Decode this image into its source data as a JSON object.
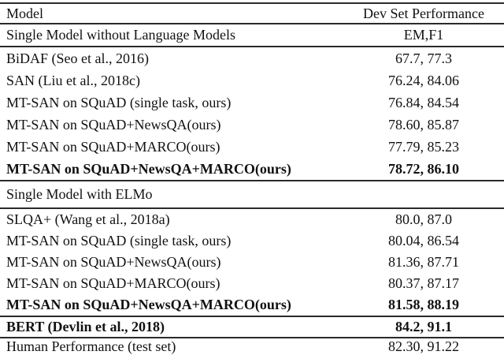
{
  "colors": {
    "background": "#ffffff",
    "text": "#111111",
    "rule": "#2a2a2a"
  },
  "header": {
    "model": "Model",
    "performance": "Dev Set Performance"
  },
  "sections": [
    {
      "label": "Single Model without Language Models",
      "metric": "EM,F1",
      "rows": [
        {
          "model": "BiDAF (Seo et al., 2016)",
          "score": "67.7, 77.3",
          "bold": false
        },
        {
          "model": "SAN (Liu et al., 2018c)",
          "score": "76.24, 84.06",
          "bold": false
        },
        {
          "model": "MT-SAN on SQuAD (single task, ours)",
          "score": "76.84, 84.54",
          "bold": false
        },
        {
          "model": "MT-SAN on SQuAD+NewsQA(ours)",
          "score": "78.60, 85.87",
          "bold": false
        },
        {
          "model": "MT-SAN on SQuAD+MARCO(ours)",
          "score": "77.79, 85.23",
          "bold": false
        },
        {
          "model": "MT-SAN on SQuAD+NewsQA+MARCO(ours)",
          "score": "78.72, 86.10",
          "bold": true
        }
      ]
    },
    {
      "label": "Single Model with ELMo",
      "metric": "",
      "rows": [
        {
          "model": "SLQA+ (Wang et al., 2018a)",
          "score": "80.0, 87.0",
          "bold": false
        },
        {
          "model": "MT-SAN on SQuAD (single task, ours)",
          "score": "80.04, 86.54",
          "bold": false
        },
        {
          "model": "MT-SAN on SQuAD+NewsQA(ours)",
          "score": "81.36, 87.71",
          "bold": false
        },
        {
          "model": "MT-SAN on SQuAD+MARCO(ours)",
          "score": "80.37, 87.17",
          "bold": false
        },
        {
          "model": "MT-SAN on SQuAD+NewsQA+MARCO(ours)",
          "score": "81.58, 88.19",
          "bold": true
        }
      ]
    }
  ],
  "footer_rows": [
    {
      "model": "BERT (Devlin et al., 2018)",
      "score": "84.2, 91.1",
      "bold": true
    },
    {
      "model": "Human Performance (test set)",
      "score": "82.30, 91.22",
      "bold": false
    }
  ]
}
